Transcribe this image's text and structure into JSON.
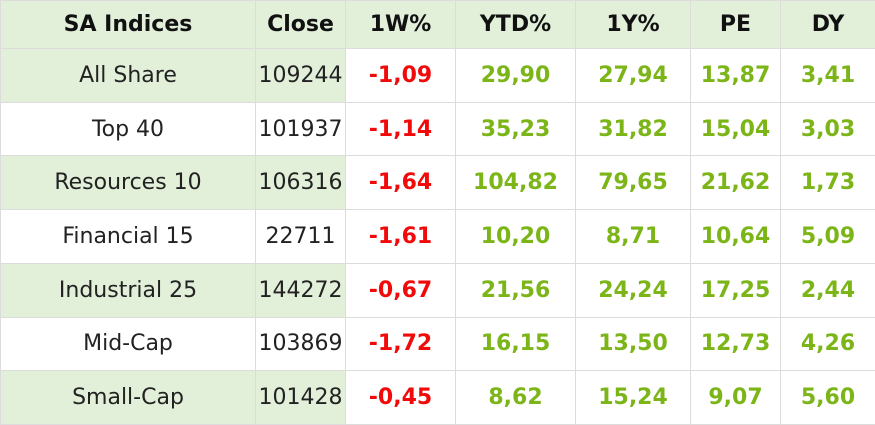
{
  "table": {
    "header": [
      "SA Indices",
      "Close",
      "1W%",
      "YTD%",
      "1Y%",
      "PE",
      "DY"
    ],
    "rows": [
      [
        "All Share",
        "109244",
        "-1,09",
        "29,90",
        "27,94",
        "13,87",
        "3,41"
      ],
      [
        "Top 40",
        "101937",
        "-1,14",
        "35,23",
        "31,82",
        "15,04",
        "3,03"
      ],
      [
        "Resources 10",
        "106316",
        "-1,64",
        "104,82",
        "79,65",
        "21,62",
        "1,73"
      ],
      [
        "Financial 15",
        "22711",
        "-1,61",
        "10,20",
        "8,71",
        "10,64",
        "5,09"
      ],
      [
        "Industrial 25",
        "144272",
        "-0,67",
        "21,56",
        "24,24",
        "17,25",
        "2,44"
      ],
      [
        "Mid-Cap",
        "103869",
        "-1,72",
        "16,15",
        "13,50",
        "12,73",
        "4,26"
      ],
      [
        "Small-Cap",
        "101428",
        "-0,45",
        "8,62",
        "15,24",
        "9,07",
        "5,60"
      ]
    ]
  }
}
